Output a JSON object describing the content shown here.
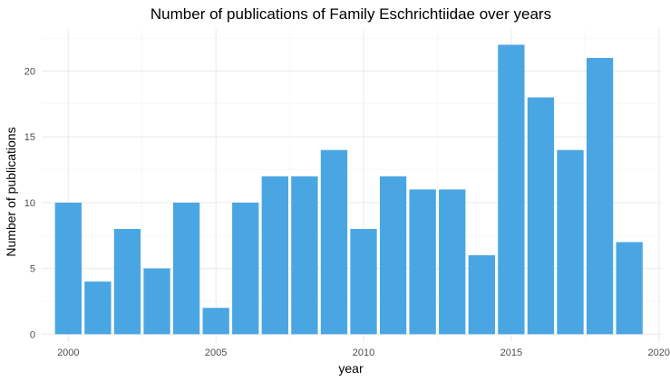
{
  "chart_data": {
    "type": "bar",
    "title": "Number of publications of Family Eschrichtiidae over years",
    "xlabel": "year",
    "ylabel": "Number of publications",
    "x": [
      2000,
      2001,
      2002,
      2003,
      2004,
      2005,
      2006,
      2007,
      2008,
      2009,
      2010,
      2011,
      2012,
      2013,
      2014,
      2015,
      2016,
      2017,
      2018,
      2019
    ],
    "values": [
      10,
      4,
      8,
      5,
      10,
      2,
      10,
      12,
      12,
      14,
      8,
      12,
      11,
      11,
      6,
      22,
      18,
      14,
      21,
      7
    ],
    "xlim": [
      1999.1,
      2020.1
    ],
    "ylim": [
      -0.6,
      23.2
    ],
    "x_ticks": [
      2000,
      2005,
      2010,
      2015,
      2020
    ],
    "y_ticks": [
      0,
      5,
      10,
      15,
      20
    ],
    "bar_color": "#4aa6e3",
    "grid": true,
    "legend": "none"
  }
}
